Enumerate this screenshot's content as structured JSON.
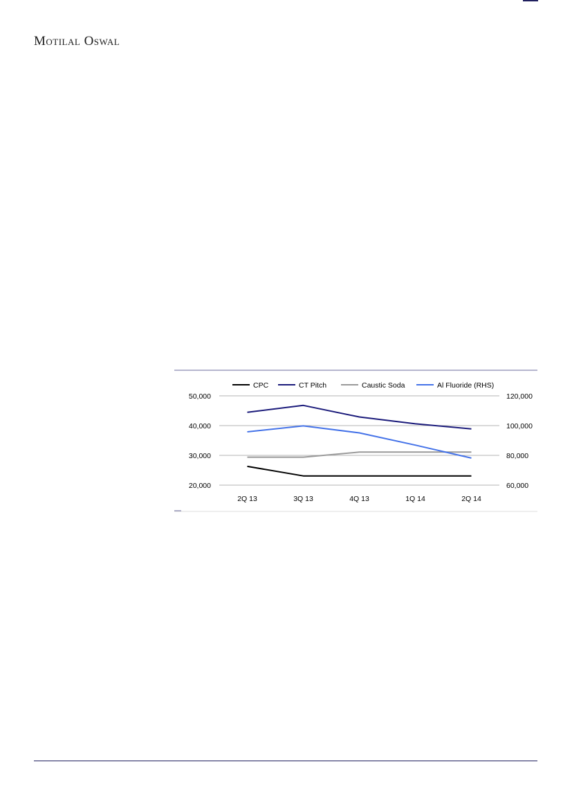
{
  "header": {
    "brand": "Motilal Oswal"
  },
  "chart_data": {
    "type": "line",
    "categories": [
      "2Q 13",
      "3Q 13",
      "4Q 13",
      "1Q 14",
      "2Q 14"
    ],
    "series": [
      {
        "name": "CPC",
        "axis": "left",
        "color": "#000000",
        "values": [
          26300,
          23100,
          23100,
          23100,
          23100
        ]
      },
      {
        "name": "CT Pitch",
        "axis": "left",
        "color": "#1a1a7a",
        "values": [
          44500,
          46800,
          42900,
          40600,
          38900
        ]
      },
      {
        "name": "Caustic Soda",
        "axis": "left",
        "color": "#999999",
        "values": [
          29400,
          29400,
          31100,
          31100,
          31100
        ]
      },
      {
        "name": "Al Fluoride (RHS)",
        "axis": "right",
        "color": "#4472e8",
        "values": [
          95800,
          99800,
          95100,
          86900,
          78200
        ]
      }
    ],
    "y_left": {
      "ylim": [
        20000,
        50000
      ],
      "ticks": [
        "20,000",
        "30,000",
        "40,000",
        "50,000"
      ],
      "tick_values": [
        20000,
        30000,
        40000,
        50000
      ]
    },
    "y_right": {
      "ylim": [
        60000,
        120000
      ],
      "ticks": [
        "60,000",
        "80,000",
        "100,000",
        "120,000"
      ],
      "tick_values": [
        60000,
        80000,
        100000,
        120000
      ]
    },
    "grid": true,
    "legend_position": "top"
  }
}
